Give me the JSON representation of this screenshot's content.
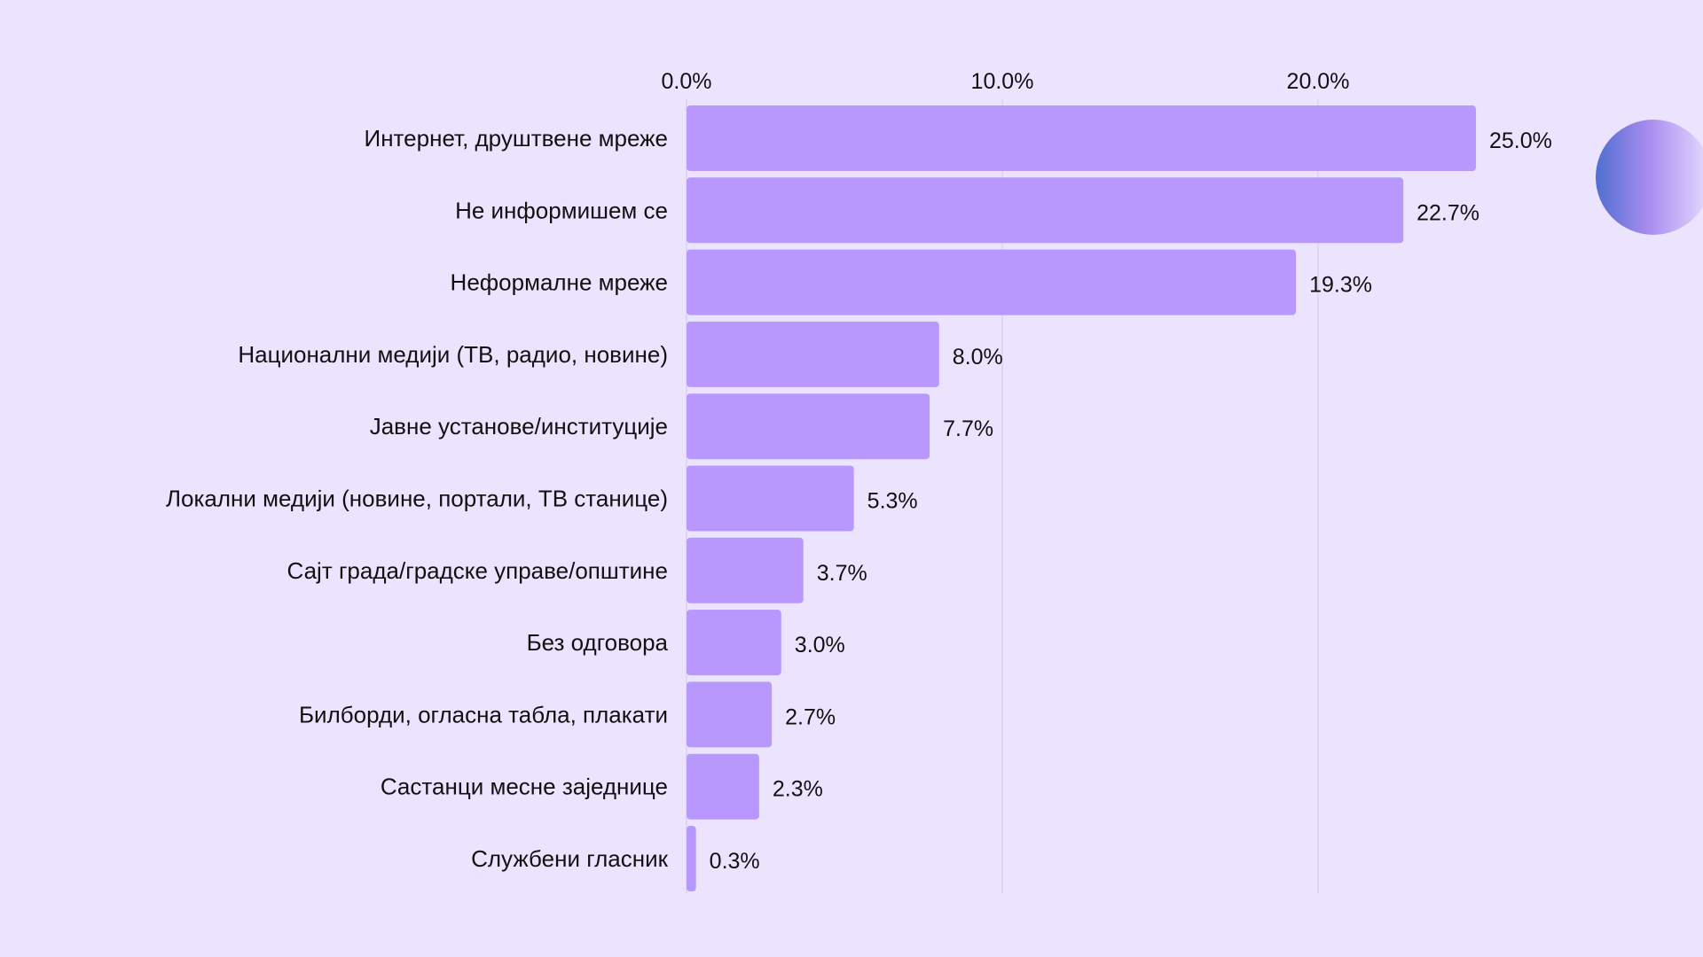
{
  "chart_data": {
    "type": "bar",
    "orientation": "horizontal",
    "categories": [
      "Интернет, друштвене мреже",
      "Не информишем се",
      "Неформалне мреже",
      "Национални медији (ТВ, радио, новине)",
      "Јавне установе/институције",
      "Локални медији (новине, портали, ТВ станице)",
      "Сајт града/градске управе/општине",
      "Без одговора",
      "Билборди, огласна табла, плакати",
      "Састанци месне заједнице",
      "Службени гласник"
    ],
    "values": [
      25.0,
      22.7,
      19.3,
      8.0,
      7.7,
      5.3,
      3.7,
      3.0,
      2.7,
      2.3,
      0.3
    ],
    "value_labels": [
      "25.0%",
      "22.7%",
      "19.3%",
      "8.0%",
      "7.7%",
      "5.3%",
      "3.7%",
      "3.0%",
      "2.7%",
      "2.3%",
      "0.3%"
    ],
    "x_ticks": [
      0,
      10,
      20
    ],
    "x_tick_labels": [
      "0.0%",
      "10.0%",
      "20.0%"
    ],
    "xlim": [
      0,
      25
    ],
    "x_axis_position": "top",
    "grid": true,
    "title": "",
    "xlabel": "",
    "ylabel": ""
  },
  "colors": {
    "background": "#ece4ff",
    "bar": "#b898fd",
    "grid": "#d9d1ee",
    "text": "#111111"
  }
}
